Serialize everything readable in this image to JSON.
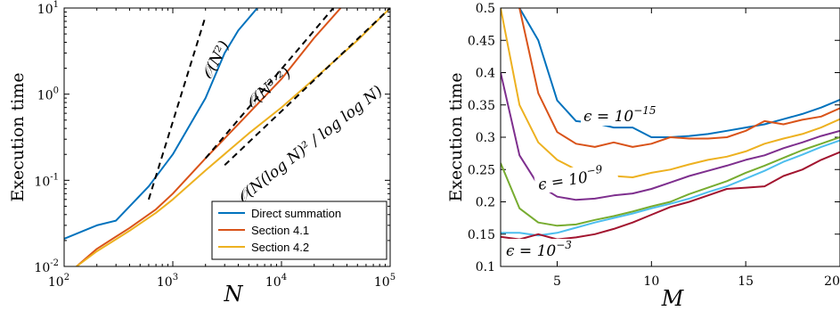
{
  "chart_data": [
    {
      "type": "line",
      "xscale": "log",
      "yscale": "log",
      "xlabel": "N",
      "ylabel": "Execution time",
      "xlim": [
        100,
        100000
      ],
      "ylim": [
        0.01,
        10
      ],
      "x_ticks": [
        {
          "base": "10",
          "exp": "2"
        },
        {
          "base": "10",
          "exp": "3"
        },
        {
          "base": "10",
          "exp": "4"
        },
        {
          "base": "10",
          "exp": "5"
        }
      ],
      "y_ticks": [
        {
          "base": "10",
          "exp": "-2"
        },
        {
          "base": "10",
          "exp": "-1"
        },
        {
          "base": "10",
          "exp": "0"
        },
        {
          "base": "10",
          "exp": "1"
        }
      ],
      "legend": {
        "position": "lower-right",
        "entries": [
          "Direct summation",
          "Section 4.1",
          "Section 4.2"
        ]
      },
      "series": [
        {
          "name": "Direct summation",
          "color": "#0072BD",
          "x": [
            100,
            200,
            300,
            600,
            1000,
            2000,
            3000,
            4000,
            6000
          ],
          "y": [
            0.021,
            0.03,
            0.034,
            0.085,
            0.2,
            0.9,
            3.0,
            5.5,
            10
          ]
        },
        {
          "name": "Section 4.1",
          "color": "#D95319",
          "x": [
            130,
            200,
            400,
            700,
            1000,
            2000,
            5000,
            10000,
            20000,
            35000
          ],
          "y": [
            0.01,
            0.016,
            0.028,
            0.046,
            0.07,
            0.18,
            0.6,
            1.5,
            4.5,
            10
          ]
        },
        {
          "name": "Section 4.2",
          "color": "#EDB120",
          "x": [
            130,
            200,
            400,
            700,
            1000,
            2000,
            5000,
            10000,
            20000,
            50000,
            100000
          ],
          "y": [
            0.01,
            0.015,
            0.026,
            0.042,
            0.06,
            0.13,
            0.35,
            0.7,
            1.5,
            4.2,
            10
          ]
        }
      ],
      "reference_lines": [
        {
          "label": "𝒪(N²)",
          "x": [
            600,
            2000
          ],
          "y": [
            0.06,
            8.0
          ]
        },
        {
          "label": "𝒪(N³ᐟ²)",
          "x": [
            2000,
            30000
          ],
          "y": [
            0.18,
            10
          ]
        },
        {
          "label": "𝒪(N(log N)² / log log N)",
          "x": [
            3000,
            100000
          ],
          "y": [
            0.15,
            10
          ]
        }
      ]
    },
    {
      "type": "line",
      "xlabel": "M",
      "ylabel": "Execution time",
      "xlim": [
        2,
        20
      ],
      "ylim": [
        0.1,
        0.5
      ],
      "x_ticks": [
        "5",
        "10",
        "15",
        "20"
      ],
      "y_ticks": [
        "0.1",
        "0.15",
        "0.2",
        "0.25",
        "0.3",
        "0.35",
        "0.4",
        "0.45",
        "0.5"
      ],
      "annotations": [
        {
          "base": "ϵ = 10",
          "exp": "−15"
        },
        {
          "base": "ϵ = 10",
          "exp": "−9"
        },
        {
          "base": "ϵ = 10",
          "exp": "−3"
        }
      ],
      "series": [
        {
          "color": "#0072BD",
          "x": [
            3,
            4,
            5,
            6,
            7,
            8,
            9,
            10,
            11,
            12,
            13,
            14,
            15,
            16,
            17,
            18,
            19,
            20
          ],
          "y": [
            0.5,
            0.45,
            0.357,
            0.325,
            0.322,
            0.315,
            0.315,
            0.3,
            0.3,
            0.302,
            0.305,
            0.31,
            0.315,
            0.32,
            0.328,
            0.336,
            0.346,
            0.358
          ]
        },
        {
          "color": "#D95319",
          "x": [
            3,
            4,
            5,
            6,
            7,
            8,
            9,
            10,
            11,
            12,
            13,
            14,
            15,
            16,
            17,
            18,
            19,
            20
          ],
          "y": [
            0.5,
            0.368,
            0.308,
            0.29,
            0.285,
            0.292,
            0.285,
            0.29,
            0.3,
            0.298,
            0.298,
            0.3,
            0.31,
            0.325,
            0.32,
            0.327,
            0.332,
            0.345
          ]
        },
        {
          "color": "#EDB120",
          "x": [
            2,
            3,
            4,
            5,
            6,
            7,
            8,
            9,
            10,
            11,
            12,
            13,
            14,
            15,
            16,
            17,
            18,
            19,
            20
          ],
          "y": [
            0.5,
            0.35,
            0.292,
            0.265,
            0.25,
            0.236,
            0.24,
            0.238,
            0.245,
            0.25,
            0.258,
            0.265,
            0.27,
            0.278,
            0.29,
            0.298,
            0.305,
            0.315,
            0.328
          ]
        },
        {
          "color": "#7E2F8E",
          "x": [
            2,
            3,
            4,
            5,
            6,
            7,
            8,
            9,
            10,
            11,
            12,
            13,
            14,
            15,
            16,
            17,
            18,
            19,
            20
          ],
          "y": [
            0.4,
            0.272,
            0.226,
            0.208,
            0.203,
            0.205,
            0.21,
            0.213,
            0.22,
            0.23,
            0.24,
            0.248,
            0.256,
            0.265,
            0.272,
            0.283,
            0.292,
            0.302,
            0.31
          ]
        },
        {
          "color": "#77AC30",
          "x": [
            2,
            3,
            4,
            5,
            6,
            7,
            8,
            9,
            10,
            11,
            12,
            13,
            14,
            15,
            16,
            17,
            18,
            19,
            20
          ],
          "y": [
            0.26,
            0.19,
            0.168,
            0.163,
            0.165,
            0.172,
            0.178,
            0.185,
            0.193,
            0.2,
            0.212,
            0.222,
            0.232,
            0.245,
            0.256,
            0.268,
            0.28,
            0.29,
            0.3
          ]
        },
        {
          "color": "#4DBEEE",
          "x": [
            2,
            3,
            4,
            5,
            6,
            7,
            8,
            9,
            10,
            11,
            12,
            13,
            14,
            15,
            16,
            17,
            18,
            19,
            20
          ],
          "y": [
            0.152,
            0.152,
            0.148,
            0.152,
            0.16,
            0.168,
            0.175,
            0.182,
            0.19,
            0.197,
            0.205,
            0.215,
            0.224,
            0.236,
            0.248,
            0.262,
            0.273,
            0.285,
            0.295
          ]
        },
        {
          "color": "#A2142F",
          "x": [
            2,
            3,
            4,
            5,
            6,
            7,
            8,
            9,
            10,
            11,
            12,
            13,
            14,
            15,
            16,
            17,
            18,
            19,
            20
          ],
          "y": [
            0.146,
            0.142,
            0.15,
            0.142,
            0.145,
            0.15,
            0.158,
            0.168,
            0.18,
            0.192,
            0.2,
            0.21,
            0.22,
            0.222,
            0.224,
            0.24,
            0.25,
            0.265,
            0.277
          ]
        }
      ]
    }
  ]
}
